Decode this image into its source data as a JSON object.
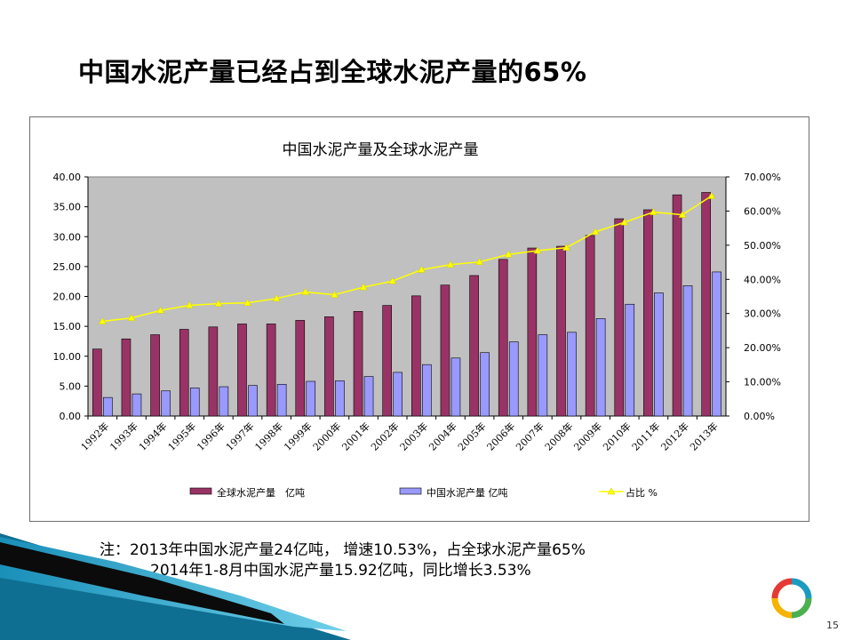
{
  "slide": {
    "title": "中国水泥产量已经占到全球水泥产量的65%",
    "page_number": "15",
    "notes": [
      "注：2013年中国水泥产量24亿吨， 增速10.53%，占全球水泥产量65%",
      "2014年1-8月中国水泥产量15.92亿吨，同比增长3.53%"
    ]
  },
  "chart_data": {
    "type": "bar",
    "title": "中国水泥产量及全球水泥产量",
    "categories": [
      "1992年",
      "1993年",
      "1994年",
      "1995年",
      "1996年",
      "1997年",
      "1998年",
      "1999年",
      "2000年",
      "2001年",
      "2002年",
      "2003年",
      "2004年",
      "2005年",
      "2006年",
      "2007年",
      "2008年",
      "2009年",
      "2010年",
      "2011年",
      "2012年",
      "2013年"
    ],
    "series": [
      {
        "name": "全球水泥产量　亿吨",
        "type": "bar",
        "axis": "left",
        "color": "#993366",
        "values": [
          11.2,
          12.9,
          13.6,
          14.5,
          14.9,
          15.4,
          15.4,
          16.0,
          16.6,
          17.5,
          18.5,
          20.1,
          21.9,
          23.5,
          26.2,
          28.1,
          28.4,
          30.2,
          33.0,
          34.5,
          37.0,
          37.4
        ]
      },
      {
        "name": "中国水泥产量  亿吨",
        "type": "bar",
        "axis": "right_left",
        "color": "#9999ff",
        "values": [
          3.1,
          3.7,
          4.2,
          4.7,
          4.9,
          5.1,
          5.3,
          5.8,
          5.9,
          6.6,
          7.3,
          8.6,
          9.7,
          10.6,
          12.4,
          13.6,
          14.0,
          16.3,
          18.7,
          20.6,
          21.8,
          24.1
        ]
      },
      {
        "name": "占比 %",
        "type": "line",
        "axis": "right",
        "color": "#ffff00",
        "values": [
          27.7,
          28.7,
          30.9,
          32.4,
          32.9,
          33.1,
          34.4,
          36.3,
          35.5,
          37.7,
          39.5,
          42.8,
          44.3,
          45.1,
          47.3,
          48.4,
          49.3,
          53.9,
          56.7,
          59.7,
          58.9,
          64.4
        ]
      }
    ],
    "y_left": {
      "ylim": [
        0,
        40
      ],
      "ticks": [
        "0.00",
        "5.00",
        "10.00",
        "15.00",
        "20.00",
        "25.00",
        "30.00",
        "35.00",
        "40.00"
      ]
    },
    "y_right": {
      "ylim": [
        0,
        70
      ],
      "ticks": [
        "0.00%",
        "10.00%",
        "20.00%",
        "30.00%",
        "40.00%",
        "50.00%",
        "60.00%",
        "70.00%"
      ]
    },
    "plot_background": "#c0c0c0",
    "legend": {
      "position": "bottom",
      "labels": [
        "全球水泥产量　亿吨",
        "中国水泥产量  亿吨",
        "占比 %"
      ]
    },
    "grid": false
  },
  "colors": {
    "global_bar": "#993366",
    "china_bar": "#9999ff",
    "ratio_line": "#ffff00",
    "plot_bg": "#c0c0c0",
    "accent_teal": "#1c9bc0"
  }
}
